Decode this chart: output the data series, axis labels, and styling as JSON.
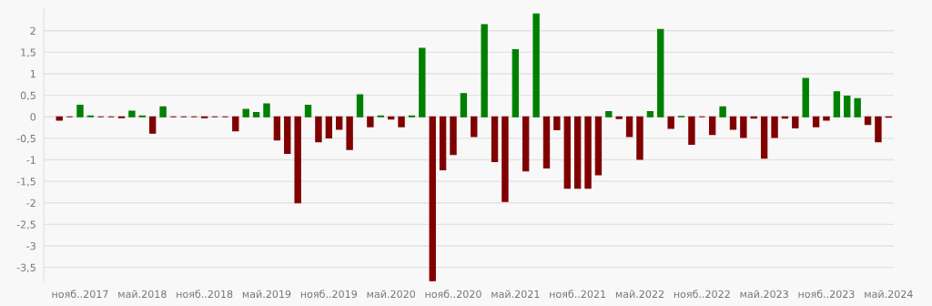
{
  "chart_data": {
    "type": "bar",
    "categories": [
      null,
      null,
      "нояб..2017",
      null,
      null,
      null,
      null,
      null,
      "май.2018",
      null,
      null,
      null,
      null,
      null,
      "нояб..2018",
      null,
      null,
      null,
      null,
      null,
      "май.2019",
      null,
      null,
      null,
      null,
      null,
      "нояб..2019",
      null,
      null,
      null,
      null,
      null,
      "май.2020",
      null,
      null,
      null,
      null,
      null,
      "нояб..2020",
      null,
      null,
      null,
      null,
      null,
      "май.2021",
      null,
      null,
      null,
      null,
      null,
      "нояб..2021",
      null,
      null,
      null,
      null,
      null,
      "май.2022",
      null,
      null,
      null,
      null,
      null,
      "нояб..2022",
      null,
      null,
      null,
      null,
      null,
      "май.2023",
      null,
      null,
      null,
      null,
      null,
      "нояб..2023",
      null,
      null,
      null,
      null,
      null,
      "май.2024"
    ],
    "values": [
      -0.08,
      0,
      0.27,
      0.02,
      0,
      0,
      -0.02,
      0.13,
      0.02,
      -0.38,
      0.23,
      0,
      0,
      0,
      -0.02,
      0,
      0,
      -0.33,
      0.17,
      0.1,
      0.3,
      -0.54,
      -0.85,
      -2.0,
      0.27,
      -0.58,
      -0.49,
      -0.29,
      -0.76,
      0.51,
      -0.23,
      0.02,
      -0.05,
      -0.23,
      0.02,
      1.59,
      -3.81,
      -1.23,
      -0.88,
      0.54,
      -0.46,
      2.14,
      -1.04,
      -1.97,
      1.56,
      -1.26,
      2.39,
      -1.19,
      -0.3,
      -1.66,
      -1.66,
      -1.66,
      -1.35,
      0.12,
      -0.04,
      -0.46,
      -0.99,
      0.12,
      2.03,
      -0.27,
      0.01,
      -0.64,
      0,
      -0.41,
      0.23,
      -0.29,
      -0.48,
      -0.03,
      -0.96,
      -0.48,
      -0.03,
      -0.26,
      0.89,
      -0.23,
      -0.08,
      0.58,
      0.48,
      0.42,
      -0.18,
      -0.58,
      -0.01
    ],
    "colors": [
      "#800000",
      "#800000",
      "#008000",
      "#008000",
      "#800000",
      "#800000",
      "#800000",
      "#008000",
      "#008000",
      "#800000",
      "#008000",
      "#800000",
      "#800000",
      "#800000",
      "#800000",
      "#800000",
      "#800000",
      "#800000",
      "#008000",
      "#008000",
      "#008000",
      "#800000",
      "#800000",
      "#800000",
      "#008000",
      "#800000",
      "#800000",
      "#800000",
      "#800000",
      "#008000",
      "#800000",
      "#008000",
      "#800000",
      "#800000",
      "#008000",
      "#008000",
      "#800000",
      "#800000",
      "#800000",
      "#008000",
      "#800000",
      "#008000",
      "#800000",
      "#800000",
      "#008000",
      "#800000",
      "#008000",
      "#800000",
      "#800000",
      "#800000",
      "#800000",
      "#800000",
      "#800000",
      "#008000",
      "#800000",
      "#800000",
      "#800000",
      "#008000",
      "#008000",
      "#800000",
      "#008000",
      "#800000",
      "#800000",
      "#800000",
      "#008000",
      "#800000",
      "#800000",
      "#800000",
      "#800000",
      "#800000",
      "#800000",
      "#800000",
      "#008000",
      "#800000",
      "#800000",
      "#008000",
      "#008000",
      "#008000",
      "#800000",
      "#800000",
      "#800000"
    ],
    "ylim": [
      -3.85,
      2.5
    ],
    "yticks": [
      {
        "value": -3.5,
        "label": "-3,5"
      },
      -3,
      {
        "value": -2.5,
        "label": "-2,5"
      },
      -2,
      {
        "value": -1.5,
        "label": "-1,5"
      },
      -1,
      {
        "value": -0.5,
        "label": "-0,5"
      },
      0,
      {
        "value": 0.5,
        "label": "0,5"
      },
      1,
      {
        "value": 1.5,
        "label": "1,5"
      },
      2
    ],
    "grid": "y",
    "legend": false
  }
}
